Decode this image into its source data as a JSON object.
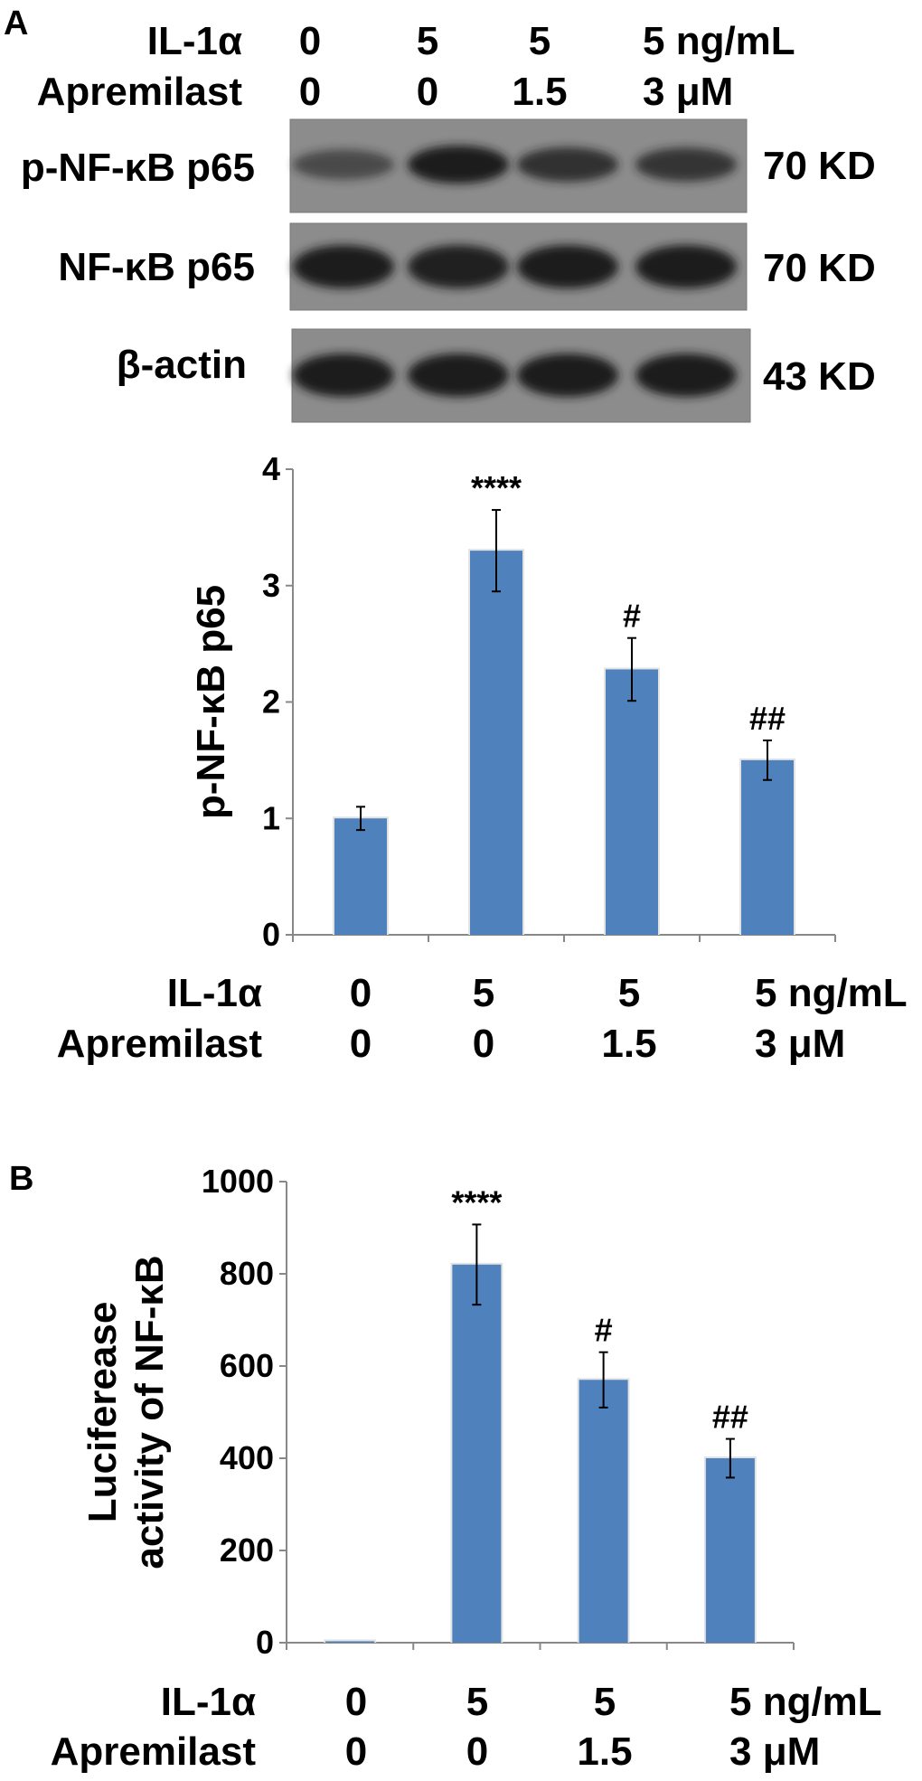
{
  "panel_a": {
    "label": "A",
    "header_rows": [
      {
        "label": "IL-1α",
        "values": [
          "0",
          "5",
          "5",
          "5 ng/mL"
        ]
      },
      {
        "label": "Apremilast",
        "values": [
          "0",
          "0",
          "1.5",
          "3 μM"
        ]
      }
    ],
    "blots": [
      {
        "label": "p-NF-κB p65",
        "size": "70 KD",
        "band_intensity": [
          0.45,
          1.0,
          0.75,
          0.7
        ]
      },
      {
        "label": "NF-κB p65",
        "size": "70 KD",
        "band_intensity": [
          1.0,
          0.95,
          1.0,
          1.0
        ]
      },
      {
        "label": "β-actin",
        "size": "43 KD",
        "band_intensity": [
          1.0,
          1.0,
          1.0,
          1.0
        ]
      }
    ]
  },
  "panel_b": {
    "label": "B"
  },
  "colors": {
    "bar": "#4f81bd",
    "blot_bg": "#8c8c8c",
    "band": "#1c1c1c"
  },
  "chart_data": [
    {
      "type": "bar",
      "title": "",
      "xlabel": "",
      "ylabel": "p-NF-κB p65",
      "ylim": [
        0,
        4
      ],
      "yticks": [
        "0",
        "1",
        "2",
        "3",
        "4"
      ],
      "grid": false,
      "categories": [
        "IL-1α 0 / Apremilast 0",
        "IL-1α 5 / Apremilast 0",
        "IL-1α 5 / Apremilast 1.5",
        "IL-1α 5 / Apremilast 3"
      ],
      "values": [
        1.0,
        3.3,
        2.28,
        1.5
      ],
      "errors": [
        0.1,
        0.35,
        0.27,
        0.17
      ],
      "annotations": [
        "",
        "****",
        "#",
        "##"
      ],
      "x_rows": [
        {
          "label": "IL-1α",
          "values": [
            "0",
            "5",
            "5",
            "5 ng/mL"
          ]
        },
        {
          "label": "Apremilast",
          "values": [
            "0",
            "0",
            "1.5",
            "3 μM"
          ]
        }
      ]
    },
    {
      "type": "bar",
      "title": "",
      "xlabel": "",
      "ylabel": [
        "Luciferease",
        "activity of NF-κB"
      ],
      "ylim": [
        0,
        1000
      ],
      "yticks": [
        "0",
        "200",
        "400",
        "600",
        "800",
        "1000"
      ],
      "grid": false,
      "categories": [
        "IL-1α 0 / Apremilast 0",
        "IL-1α 5 / Apremilast 0",
        "IL-1α 5 / Apremilast 1.5",
        "IL-1α 5 / Apremilast 3"
      ],
      "values": [
        3,
        820,
        570,
        400
      ],
      "errors": [
        0,
        87,
        60,
        42
      ],
      "annotations": [
        "",
        "****",
        "#",
        "##"
      ],
      "x_rows": [
        {
          "label": "IL-1α",
          "values": [
            "0",
            "5",
            "5",
            "5 ng/mL"
          ]
        },
        {
          "label": "Apremilast",
          "values": [
            "0",
            "0",
            "1.5",
            "3 μM"
          ]
        }
      ]
    }
  ]
}
